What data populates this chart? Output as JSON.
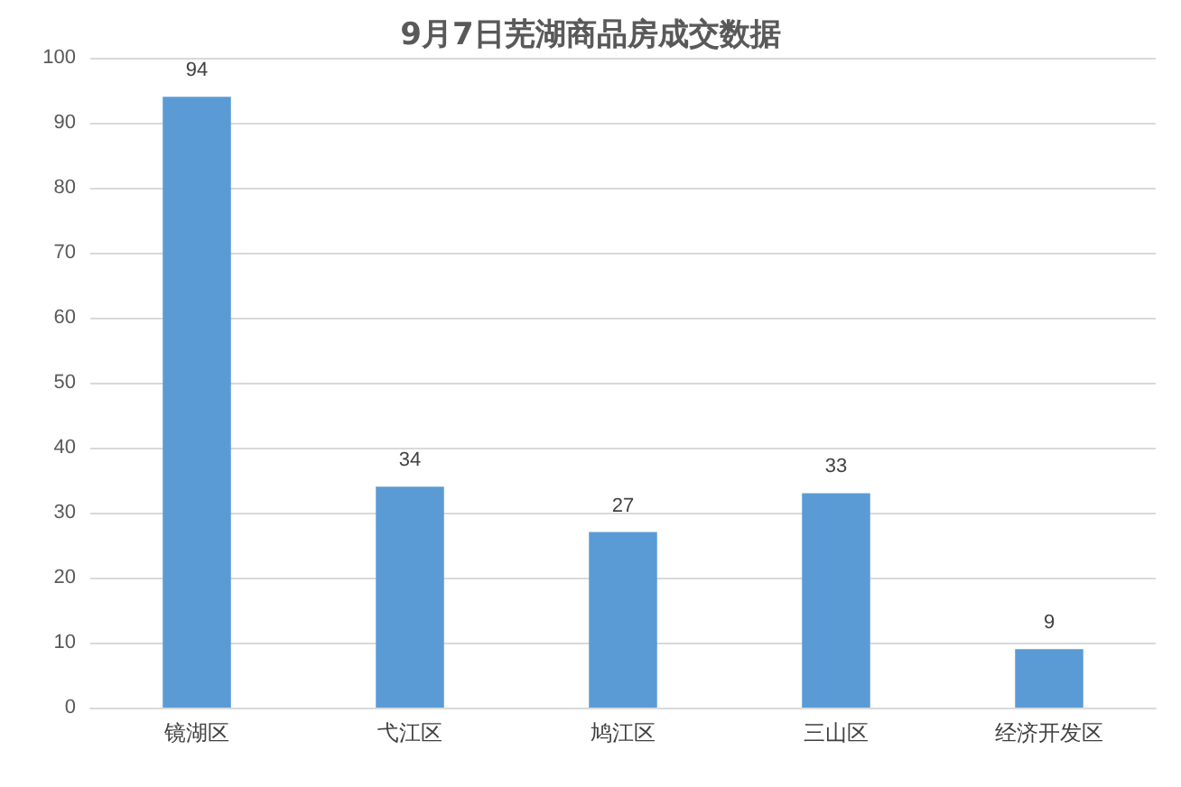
{
  "chart_data": {
    "type": "bar",
    "title": "9月7日芜湖商品房成交数据",
    "categories": [
      "镜湖区",
      "弋江区",
      "鸠江区",
      "三山区",
      "经济开发区"
    ],
    "values": [
      94,
      34,
      27,
      33,
      9
    ],
    "color": "#5b9bd5",
    "ylim": [
      0,
      100
    ],
    "yticks": [
      0,
      10,
      20,
      30,
      40,
      50,
      60,
      70,
      80,
      90,
      100
    ],
    "grid": "y",
    "data_labels": true
  }
}
